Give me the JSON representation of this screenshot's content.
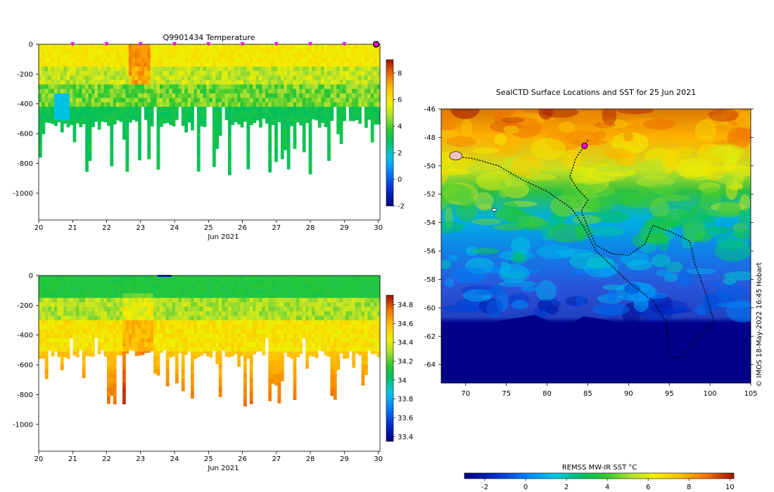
{
  "chart_data": [
    {
      "type": "heatmap",
      "title": "Q9901434  Temperature",
      "xlabel": "Jun 2021",
      "x_ticks": [
        "20",
        "21",
        "22",
        "23",
        "24",
        "25",
        "26",
        "27",
        "28",
        "29",
        "30"
      ],
      "xlim": [
        20,
        30.05
      ],
      "y_ticks": [
        "0",
        "-200",
        "-400",
        "-600",
        "-800",
        "-1000"
      ],
      "y_tick_values": [
        0,
        -200,
        -400,
        -600,
        -800,
        -1000
      ],
      "ylim": [
        -1180,
        0
      ],
      "colorbar_ticks": [
        "8",
        "6",
        "4",
        "2",
        "0",
        "-2"
      ],
      "colorbar_tick_values": [
        8,
        6,
        4,
        2,
        0,
        -2
      ],
      "colorbar_range": [
        -2,
        9
      ],
      "profile_markers_days": [
        21,
        22,
        23,
        24,
        25,
        26,
        27,
        28,
        29
      ],
      "latest_marker_day": 30
    },
    {
      "type": "heatmap",
      "title": "",
      "xlabel": "Jun 2021",
      "x_ticks": [
        "20",
        "21",
        "22",
        "23",
        "24",
        "25",
        "26",
        "27",
        "28",
        "29",
        "30"
      ],
      "xlim": [
        20,
        30.05
      ],
      "y_ticks": [
        "0",
        "-200",
        "-400",
        "-600",
        "-800",
        "-1000"
      ],
      "y_tick_values": [
        0,
        -200,
        -400,
        -600,
        -800,
        -1000
      ],
      "ylim": [
        -1180,
        0
      ],
      "colorbar_ticks": [
        "34.8",
        "34.6",
        "34.4",
        "34.2",
        "34",
        "33.8",
        "33.6",
        "33.4"
      ],
      "colorbar_tick_values": [
        34.8,
        34.6,
        34.4,
        34.2,
        34.0,
        33.8,
        33.6,
        33.4
      ],
      "colorbar_range": [
        33.35,
        34.9
      ]
    },
    {
      "type": "heatmap",
      "title": "SealCTD Surface Locations and SST for 25 Jun 2021",
      "x_ticks": [
        "70",
        "75",
        "80",
        "85",
        "90",
        "95",
        "100",
        "105"
      ],
      "x_tick_values": [
        70,
        75,
        80,
        85,
        90,
        95,
        100,
        105
      ],
      "xlim": [
        67,
        105
      ],
      "y_ticks": [
        "-46",
        "-48",
        "-50",
        "-52",
        "-54",
        "-56",
        "-58",
        "-60",
        "-62",
        "-64"
      ],
      "y_tick_values": [
        -46,
        -48,
        -50,
        -52,
        -54,
        -56,
        -58,
        -60,
        -62,
        -64
      ],
      "ylim": [
        -65.3,
        -46
      ],
      "side_label": "© IMOS 18-May-2022 16:45 Hobart",
      "colorbar_label": "REMSS MW-IR SST °C",
      "colorbar_ticks": [
        "-2",
        "0",
        "2",
        "4",
        "6",
        "8",
        "10"
      ],
      "colorbar_tick_values": [
        -2,
        0,
        2,
        4,
        6,
        8,
        10
      ],
      "colorbar_range": [
        -3,
        10.2
      ]
    }
  ]
}
